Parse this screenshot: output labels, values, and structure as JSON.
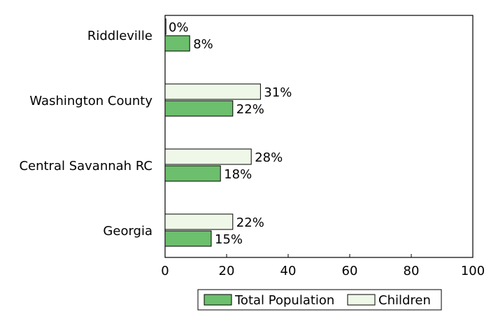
{
  "chart_data": {
    "type": "bar",
    "orientation": "horizontal",
    "categories": [
      "Riddleville",
      "Washington County",
      "Central Savannah RC",
      "Georgia"
    ],
    "series": [
      {
        "name": "Children",
        "color": "#eff8e8",
        "values": [
          0,
          31,
          28,
          22
        ],
        "labels": [
          "0%",
          "31%",
          "28%",
          "22%"
        ]
      },
      {
        "name": "Total Population",
        "color": "#6cbf6c",
        "values": [
          8,
          22,
          18,
          15
        ],
        "labels": [
          "8%",
          "22%",
          "18%",
          "15%"
        ]
      }
    ],
    "xlim": [
      0,
      100
    ],
    "xticks": [
      0,
      20,
      40,
      60,
      80,
      100
    ],
    "xtick_labels": [
      "0",
      "20",
      "40",
      "60",
      "80",
      "100"
    ],
    "legend": {
      "position": "bottom",
      "entries": [
        "Total Population",
        "Children"
      ]
    },
    "grid": false
  }
}
